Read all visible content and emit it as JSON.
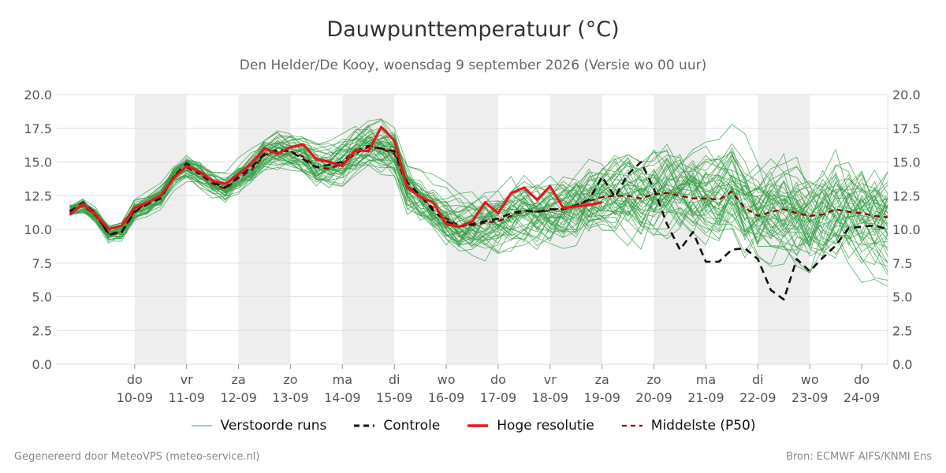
{
  "header": {
    "title": "Dauwpunttemperatuur (°C)",
    "subtitle": "Den Helder/De Kooy, woensdag  9 september 2026 (Versie wo 00 uur)"
  },
  "footer": {
    "left": "Gegenereerd door MeteoVPS (meteo-service.nl)",
    "right": "Bron: ECMWF AIFS/KNMI Ens"
  },
  "colors": {
    "ensemble": "#3aa04a",
    "control": "#111111",
    "high_res": "#e8161b",
    "median": "#8b0000",
    "band": "#eeeeee",
    "grid": "#dddddd"
  },
  "legend": [
    {
      "key": "ensemble",
      "label": "Verstoorde runs"
    },
    {
      "key": "control",
      "label": "Controle"
    },
    {
      "key": "high_res",
      "label": "Hoge resolutie"
    },
    {
      "key": "median",
      "label": "Middelste (P50)"
    }
  ],
  "chart_data": {
    "type": "line",
    "x_unit": "hours since 10-09 00 uur",
    "xlim": [
      -36,
      348
    ],
    "ylim": [
      0,
      20
    ],
    "yticks": [
      "0.0",
      "2.5",
      "5.0",
      "7.5",
      "10.0",
      "12.5",
      "15.0",
      "17.5",
      "20.0"
    ],
    "xticks": [
      {
        "day": "do",
        "date": "10-09"
      },
      {
        "day": "vr",
        "date": "11-09"
      },
      {
        "day": "za",
        "date": "12-09"
      },
      {
        "day": "zo",
        "date": "13-09"
      },
      {
        "day": "ma",
        "date": "14-09"
      },
      {
        "day": "di",
        "date": "15-09"
      },
      {
        "day": "wo",
        "date": "16-09"
      },
      {
        "day": "do",
        "date": "17-09"
      },
      {
        "day": "vr",
        "date": "18-09"
      },
      {
        "day": "za",
        "date": "19-09"
      },
      {
        "day": "zo",
        "date": "20-09"
      },
      {
        "day": "ma",
        "date": "21-09"
      },
      {
        "day": "di",
        "date": "22-09"
      },
      {
        "day": "wo",
        "date": "23-09"
      },
      {
        "day": "do",
        "date": "24-09"
      }
    ],
    "weekend_bands": [
      [
        0,
        24
      ],
      [
        48,
        72
      ],
      [
        96,
        120
      ],
      [
        144,
        168
      ],
      [
        192,
        216
      ],
      [
        240,
        264
      ],
      [
        288,
        312
      ]
    ],
    "ensemble_member_count": 50,
    "series": [
      {
        "name": "Hoge resolutie",
        "key": "high_res",
        "x": [
          -30,
          -24,
          -18,
          -12,
          -6,
          0,
          6,
          12,
          18,
          24,
          30,
          36,
          42,
          48,
          54,
          60,
          66,
          72,
          78,
          84,
          90,
          96,
          102,
          108,
          114,
          120,
          126,
          132,
          138,
          144,
          150,
          156,
          162,
          168,
          174,
          180,
          186,
          192,
          198,
          204,
          210,
          216
        ],
        "y": [
          11.1,
          11.9,
          11.1,
          10.0,
          10.3,
          11.6,
          12.0,
          12.5,
          13.8,
          14.7,
          14.3,
          13.6,
          13.4,
          14.1,
          14.9,
          16.0,
          15.6,
          16.1,
          16.3,
          15.2,
          15.0,
          14.7,
          15.9,
          15.8,
          17.6,
          16.6,
          13.1,
          12.4,
          12.0,
          10.4,
          10.2,
          10.6,
          12.0,
          11.2,
          12.7,
          13.1,
          12.2,
          13.2,
          11.6,
          11.7,
          11.8,
          12.0
        ]
      },
      {
        "name": "Controle",
        "key": "control",
        "x": [
          -30,
          -24,
          -18,
          -12,
          -6,
          0,
          6,
          12,
          18,
          24,
          30,
          36,
          42,
          48,
          54,
          60,
          66,
          72,
          78,
          84,
          90,
          96,
          102,
          108,
          114,
          120,
          126,
          132,
          138,
          144,
          150,
          156,
          162,
          168,
          174,
          180,
          186,
          192,
          198,
          204,
          210,
          216,
          222,
          228,
          234,
          240,
          246,
          252,
          258,
          264,
          270,
          276,
          282,
          288,
          294,
          300,
          306,
          312,
          318,
          324,
          330,
          336,
          342,
          348
        ],
        "y": [
          11.3,
          12.0,
          11.2,
          9.6,
          9.8,
          11.3,
          11.9,
          12.3,
          13.9,
          14.9,
          14.2,
          13.5,
          13.1,
          13.9,
          14.6,
          15.6,
          15.9,
          15.8,
          15.2,
          14.6,
          14.8,
          15.0,
          15.8,
          16.2,
          16.0,
          15.8,
          13.5,
          12.5,
          11.4,
          10.6,
          10.2,
          10.4,
          10.6,
          10.8,
          11.2,
          11.4,
          11.3,
          11.5,
          11.5,
          11.8,
          12.2,
          13.9,
          12.4,
          14.1,
          15.0,
          13.0,
          10.4,
          8.5,
          9.8,
          7.6,
          7.6,
          8.5,
          8.6,
          7.8,
          5.5,
          4.8,
          7.8,
          6.9,
          7.9,
          8.8,
          10.1,
          10.2,
          10.3,
          10.0
        ]
      },
      {
        "name": "Middelste (P50)",
        "key": "median",
        "x": [
          -30,
          -24,
          -18,
          -12,
          -6,
          0,
          6,
          12,
          18,
          24,
          30,
          36,
          42,
          48,
          54,
          60,
          66,
          72,
          78,
          84,
          90,
          96,
          102,
          108,
          114,
          120,
          126,
          132,
          138,
          144,
          150,
          156,
          162,
          168,
          174,
          180,
          186,
          192,
          198,
          204,
          210,
          216,
          222,
          228,
          234,
          240,
          246,
          252,
          258,
          264,
          270,
          276,
          282,
          288,
          294,
          300,
          306,
          312,
          318,
          324,
          330,
          336,
          342,
          348
        ],
        "y": [
          11.4,
          11.8,
          11.0,
          9.7,
          9.8,
          11.4,
          11.9,
          12.4,
          13.9,
          14.6,
          14.1,
          13.4,
          13.0,
          13.8,
          14.4,
          15.5,
          15.8,
          15.8,
          15.4,
          14.6,
          14.5,
          14.9,
          15.6,
          16.1,
          16.0,
          15.6,
          13.2,
          12.4,
          11.6,
          10.8,
          10.3,
          10.3,
          10.5,
          10.6,
          11.0,
          11.4,
          11.3,
          11.4,
          11.6,
          11.8,
          12.1,
          12.4,
          12.5,
          12.5,
          12.3,
          12.6,
          12.7,
          12.5,
          12.3,
          12.3,
          12.2,
          12.8,
          11.6,
          11.0,
          11.3,
          11.5,
          11.2,
          11.0,
          11.1,
          11.5,
          11.3,
          11.2,
          11.0,
          10.9
        ]
      }
    ]
  }
}
